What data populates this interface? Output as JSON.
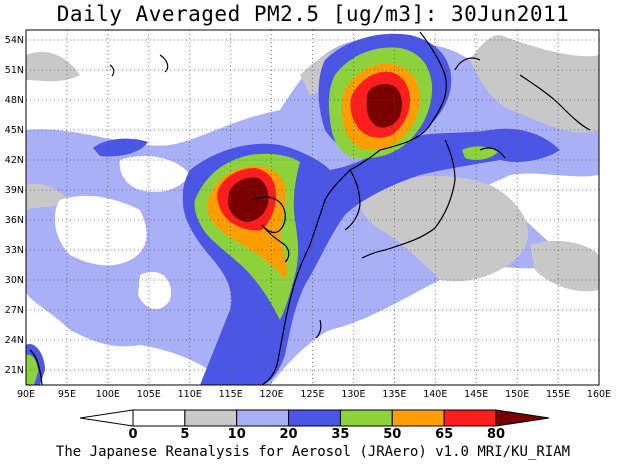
{
  "title": "Daily Averaged PM2.5 [ug/m3]: 30Jun2011",
  "footer": "The Japanese Reanalysis for Aerosol (JRAero) v1.0 MRI/KU_RIAM",
  "map": {
    "lon_range": [
      90,
      160
    ],
    "lat_range": [
      19.5,
      55
    ],
    "lon_ticks": [
      "90E",
      "95E",
      "100E",
      "105E",
      "110E",
      "115E",
      "120E",
      "125E",
      "130E",
      "135E",
      "140E",
      "145E",
      "150E",
      "155E",
      "160E"
    ],
    "lat_ticks": [
      "21N",
      "24N",
      "27N",
      "30N",
      "33N",
      "36N",
      "39N",
      "42N",
      "45N",
      "48N",
      "51N",
      "54N"
    ],
    "grid": true
  },
  "colorbar": {
    "levels": [
      "0",
      "5",
      "10",
      "20",
      "35",
      "50",
      "65",
      "80"
    ],
    "colors": [
      "#ffffff",
      "#ffffff",
      "#c8c8c8",
      "#aab0f5",
      "#4b55e6",
      "#8cd23c",
      "#ff9e00",
      "#ff1e1e",
      "#7a0000"
    ]
  }
}
